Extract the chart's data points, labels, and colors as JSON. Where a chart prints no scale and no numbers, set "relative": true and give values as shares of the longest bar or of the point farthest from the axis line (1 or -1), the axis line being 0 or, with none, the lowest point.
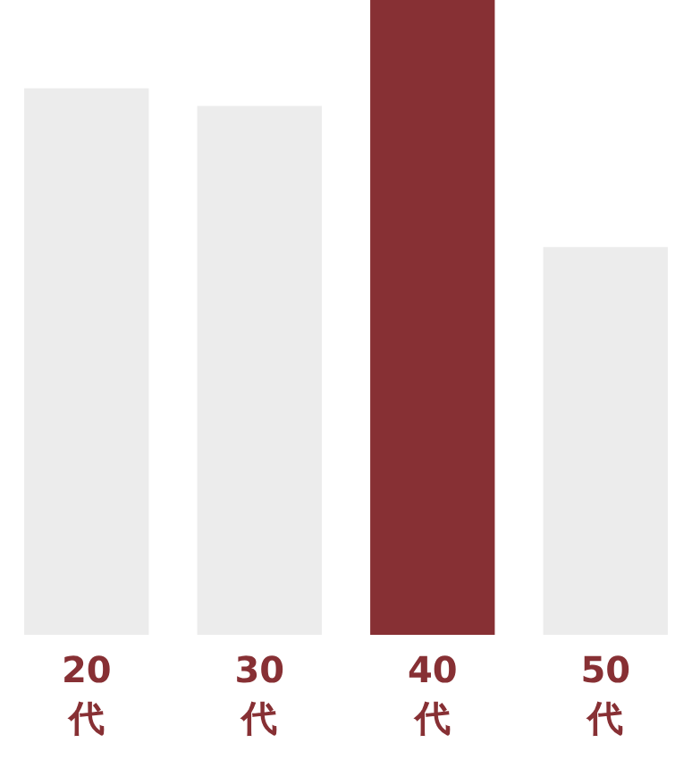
{
  "chart_data": {
    "type": "bar",
    "relative": true,
    "categories": [
      "20代",
      "30代",
      "40代",
      "50代"
    ],
    "values": [
      0.861,
      0.833,
      1,
      0.611
    ],
    "colors": [
      "#ececec",
      "#ececec",
      "#873034",
      "#ececec"
    ],
    "grid": false,
    "legend": false
  }
}
